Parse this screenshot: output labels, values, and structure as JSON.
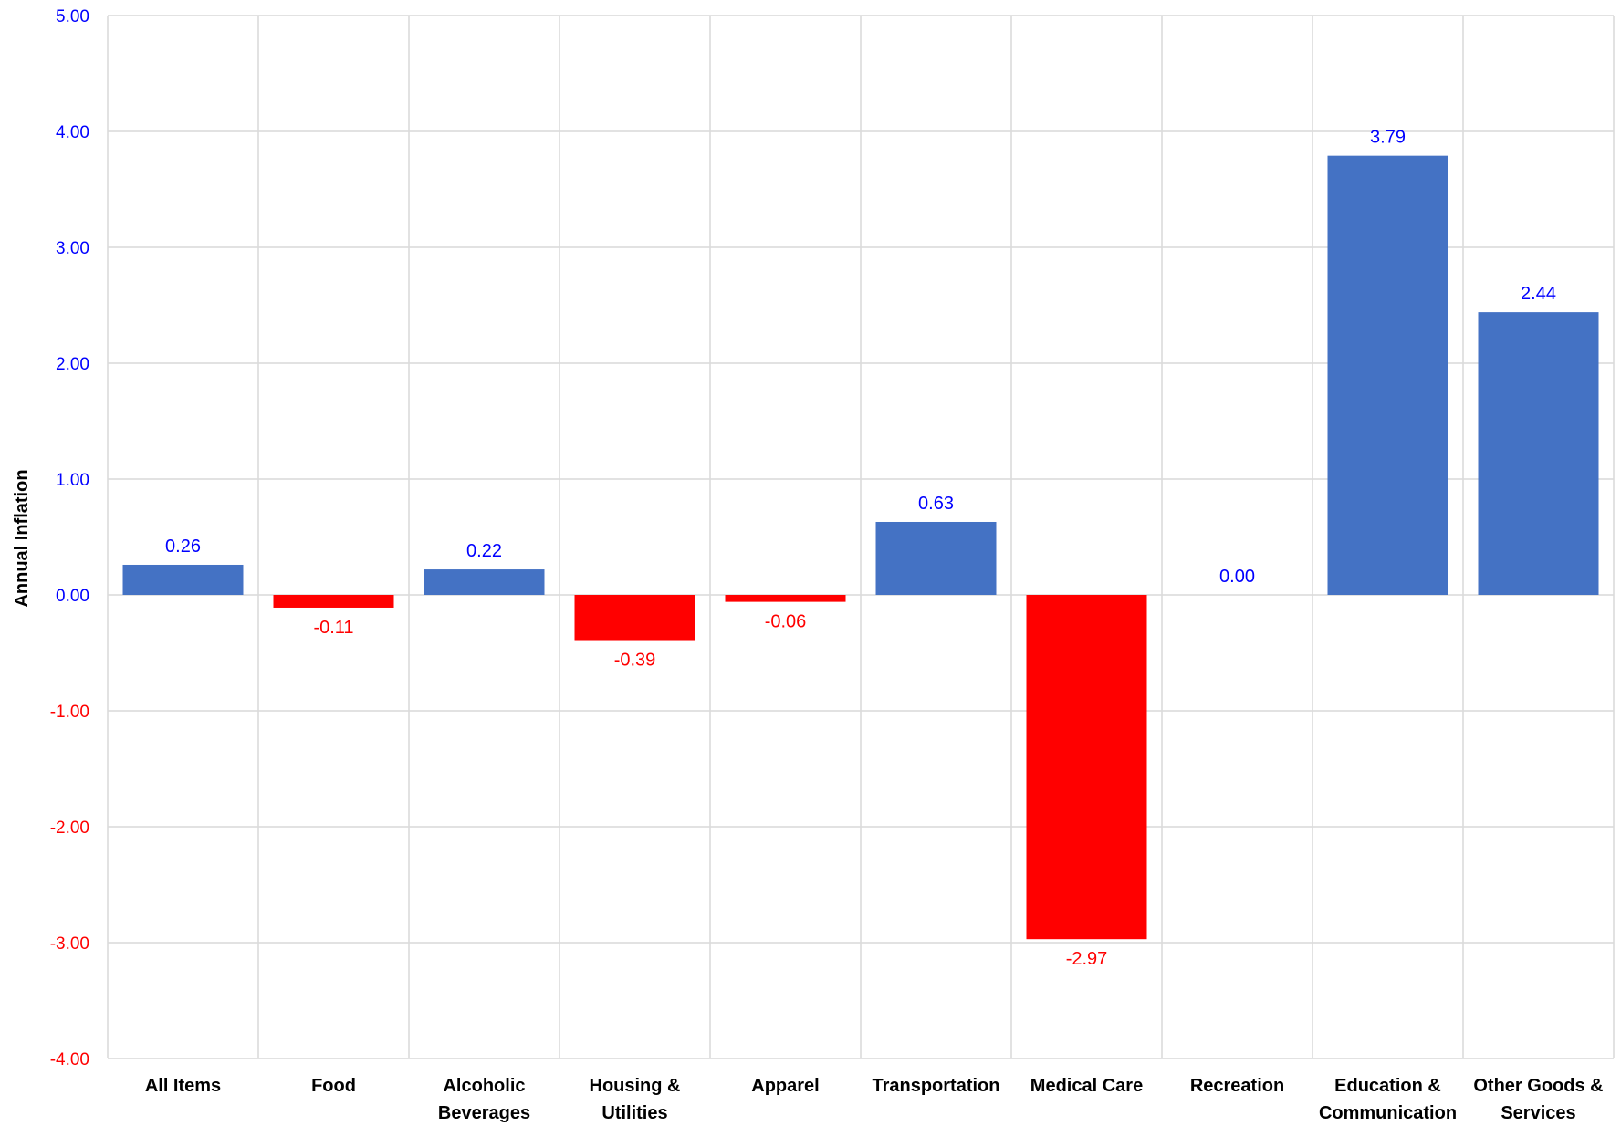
{
  "chart_data": {
    "type": "bar",
    "title": "",
    "xlabel": "",
    "ylabel": "Annual Inflation",
    "ylim": [
      -4,
      5
    ],
    "yticks": [
      "5.00",
      "4.00",
      "3.00",
      "2.00",
      "1.00",
      "0.00",
      "-1.00",
      "-2.00",
      "-3.00",
      "-4.00"
    ],
    "grid": true,
    "categories": [
      [
        "All Items"
      ],
      [
        "Food"
      ],
      [
        "Alcoholic",
        "Beverages"
      ],
      [
        "Housing &",
        "Utilities"
      ],
      [
        "Apparel"
      ],
      [
        "Transportation"
      ],
      [
        "Medical Care"
      ],
      [
        "Recreation"
      ],
      [
        "Education &",
        "Communication"
      ],
      [
        "Other Goods &",
        "Services"
      ]
    ],
    "values": [
      0.26,
      -0.11,
      0.22,
      -0.39,
      -0.06,
      0.63,
      -2.97,
      0.0,
      3.79,
      2.44
    ],
    "data_labels": [
      "0.26",
      "-0.11",
      "0.22",
      "-0.39",
      "-0.06",
      "0.63",
      "-2.97",
      "0.00",
      "3.79",
      "2.44"
    ],
    "colors": {
      "positive_bar": "#4472C4",
      "negative_bar": "#FF0000",
      "positive_text": "#0000FF",
      "negative_text": "#FF0000",
      "grid": "#D9D9D9"
    }
  }
}
